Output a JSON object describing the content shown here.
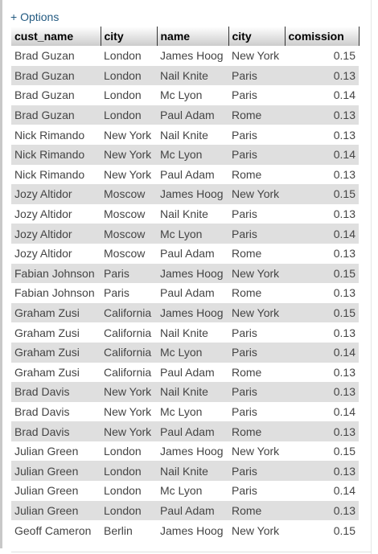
{
  "toolbar": {
    "options_label": "+ Options"
  },
  "table": {
    "columns": [
      "cust_name",
      "city",
      "name",
      "city",
      "comission"
    ],
    "rows": [
      [
        "Brad Guzan",
        "London",
        "James Hoog",
        "New York",
        "0.15"
      ],
      [
        "Brad Guzan",
        "London",
        "Nail Knite",
        "Paris",
        "0.13"
      ],
      [
        "Brad Guzan",
        "London",
        "Mc Lyon",
        "Paris",
        "0.14"
      ],
      [
        "Brad Guzan",
        "London",
        "Paul Adam",
        "Rome",
        "0.13"
      ],
      [
        "Nick Rimando",
        "New York",
        "Nail Knite",
        "Paris",
        "0.13"
      ],
      [
        "Nick Rimando",
        "New York",
        "Mc Lyon",
        "Paris",
        "0.14"
      ],
      [
        "Nick Rimando",
        "New York",
        "Paul Adam",
        "Rome",
        "0.13"
      ],
      [
        "Jozy Altidor",
        "Moscow",
        "James Hoog",
        "New York",
        "0.15"
      ],
      [
        "Jozy Altidor",
        "Moscow",
        "Nail Knite",
        "Paris",
        "0.13"
      ],
      [
        "Jozy Altidor",
        "Moscow",
        "Mc Lyon",
        "Paris",
        "0.14"
      ],
      [
        "Jozy Altidor",
        "Moscow",
        "Paul Adam",
        "Rome",
        "0.13"
      ],
      [
        "Fabian Johnson",
        "Paris",
        "James Hoog",
        "New York",
        "0.15"
      ],
      [
        "Fabian Johnson",
        "Paris",
        "Paul Adam",
        "Rome",
        "0.13"
      ],
      [
        "Graham Zusi",
        "California",
        "James Hoog",
        "New York",
        "0.15"
      ],
      [
        "Graham Zusi",
        "California",
        "Nail Knite",
        "Paris",
        "0.13"
      ],
      [
        "Graham Zusi",
        "California",
        "Mc Lyon",
        "Paris",
        "0.14"
      ],
      [
        "Graham Zusi",
        "California",
        "Paul Adam",
        "Rome",
        "0.13"
      ],
      [
        "Brad Davis",
        "New York",
        "Nail Knite",
        "Paris",
        "0.13"
      ],
      [
        "Brad Davis",
        "New York",
        "Mc Lyon",
        "Paris",
        "0.14"
      ],
      [
        "Brad Davis",
        "New York",
        "Paul Adam",
        "Rome",
        "0.13"
      ],
      [
        "Julian Green",
        "London",
        "James Hoog",
        "New York",
        "0.15"
      ],
      [
        "Julian Green",
        "London",
        "Nail Knite",
        "Paris",
        "0.13"
      ],
      [
        "Julian Green",
        "London",
        "Mc Lyon",
        "Paris",
        "0.14"
      ],
      [
        "Julian Green",
        "London",
        "Paul Adam",
        "Rome",
        "0.13"
      ],
      [
        "Geoff Cameron",
        "Berlin",
        "James Hoog",
        "New York",
        "0.15"
      ]
    ]
  }
}
